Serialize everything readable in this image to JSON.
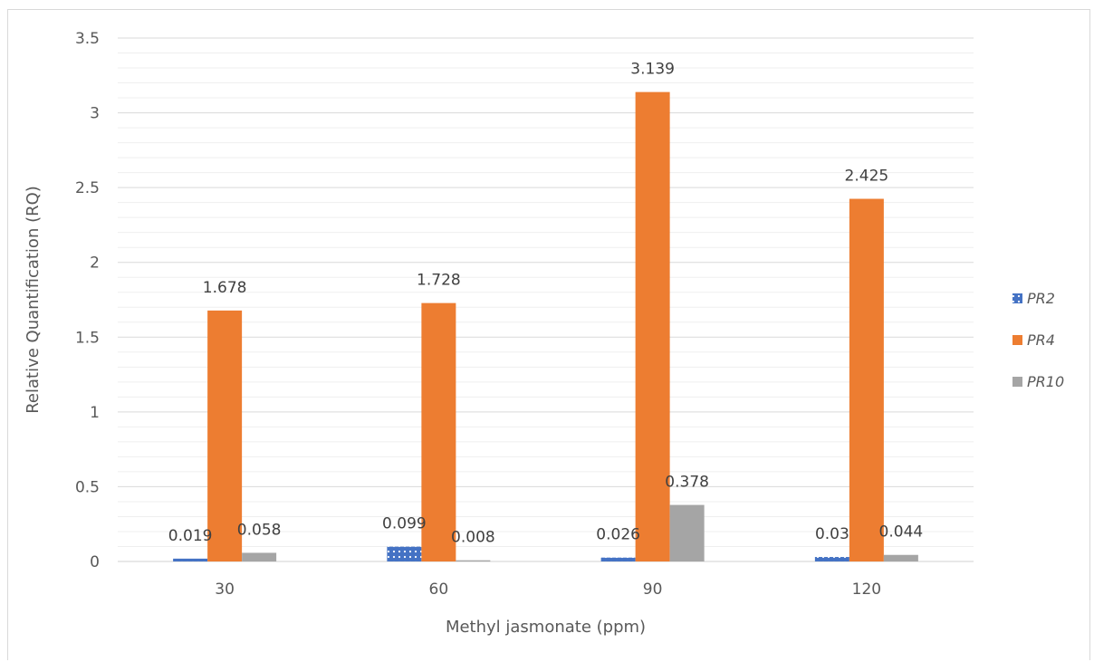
{
  "chart_data": {
    "type": "bar",
    "title": "",
    "xlabel": "Methyl jasmonate (ppm)",
    "ylabel": "Relative Quantification (RQ)",
    "categories": [
      "30",
      "60",
      "90",
      "120"
    ],
    "ylim": [
      0,
      3.5
    ],
    "yticks": [
      "0",
      "0.5",
      "1",
      "1.5",
      "2",
      "2.5",
      "3",
      "3.5"
    ],
    "ytick_values": [
      0,
      0.5,
      1,
      1.5,
      2,
      2.5,
      3,
      3.5
    ],
    "minor_step": 0.1,
    "grid": true,
    "legend_position": "right",
    "series": [
      {
        "name": "PR2",
        "values": [
          0.019,
          0.099,
          0.026,
          0.03
        ],
        "labels": [
          "0.019",
          "0.099",
          "0.026",
          "0.03"
        ],
        "color": "#4472c4",
        "pattern": "dotted"
      },
      {
        "name": "PR4",
        "values": [
          1.678,
          1.728,
          3.139,
          2.425
        ],
        "labels": [
          "1.678",
          "1.728",
          "3.139",
          "2.425"
        ],
        "color": "#ed7d31",
        "pattern": "solid"
      },
      {
        "name": "PR10",
        "values": [
          0.058,
          0.008,
          0.378,
          0.044
        ],
        "labels": [
          "0.058",
          "0.008",
          "0.378",
          "0.044"
        ],
        "color": "#a5a5a5",
        "pattern": "solid"
      }
    ]
  }
}
